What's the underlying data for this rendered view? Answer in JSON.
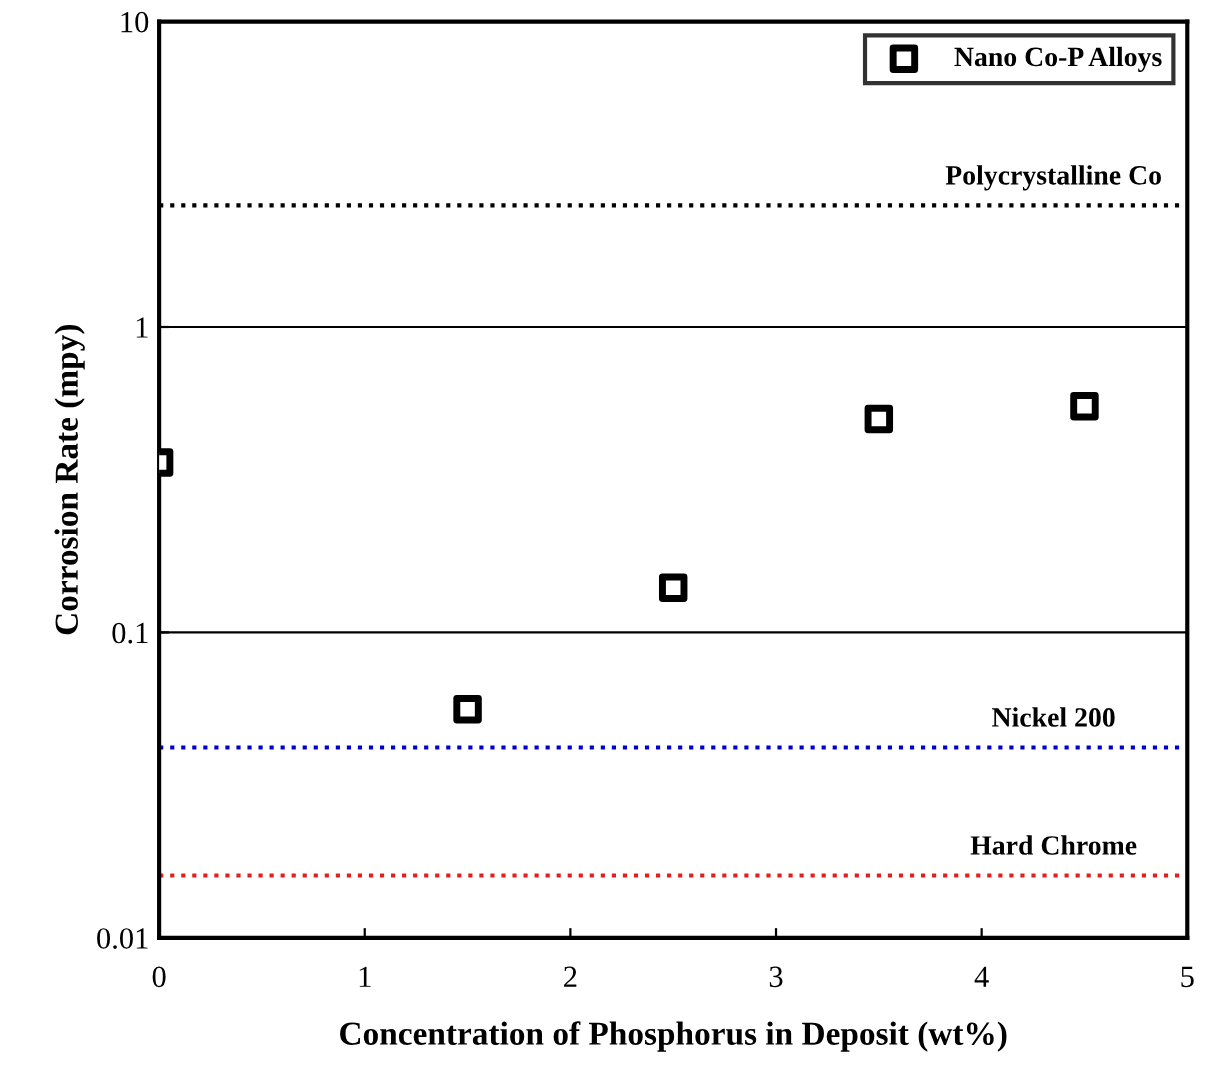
{
  "chart_data": {
    "type": "scatter",
    "xlabel": "Concentration of Phosphorus in Deposit (wt%)",
    "ylabel": "Corrosion Rate (mpy)",
    "x": [
      0,
      1.5,
      2.5,
      3.5,
      4.5
    ],
    "series": [
      {
        "name": "Nano Co-P Alloys",
        "color": "#000000",
        "values": [
          0.36,
          0.056,
          0.14,
          0.5,
          0.55
        ]
      }
    ],
    "log": "y",
    "xlim": [
      0,
      5
    ],
    "xticks": [
      0,
      1,
      2,
      3,
      4,
      5
    ],
    "ylim": [
      0.01,
      10
    ],
    "yticks": [
      0.01,
      0.1,
      1,
      10
    ],
    "grid": "y",
    "legend": "top right",
    "marker": "square",
    "ref_lines": [
      {
        "axis": "y",
        "value": 2.5,
        "label": "Polycrystalline Co",
        "color": "#000000",
        "line_style": "dotted"
      },
      {
        "axis": "y",
        "value": 0.042,
        "label": "Nickel 200",
        "color": "#0000cc",
        "line_style": "dotted"
      },
      {
        "axis": "y",
        "value": 0.016,
        "label": "Hard Chrome",
        "color": "#e02020",
        "line_style": "dotted"
      }
    ]
  }
}
